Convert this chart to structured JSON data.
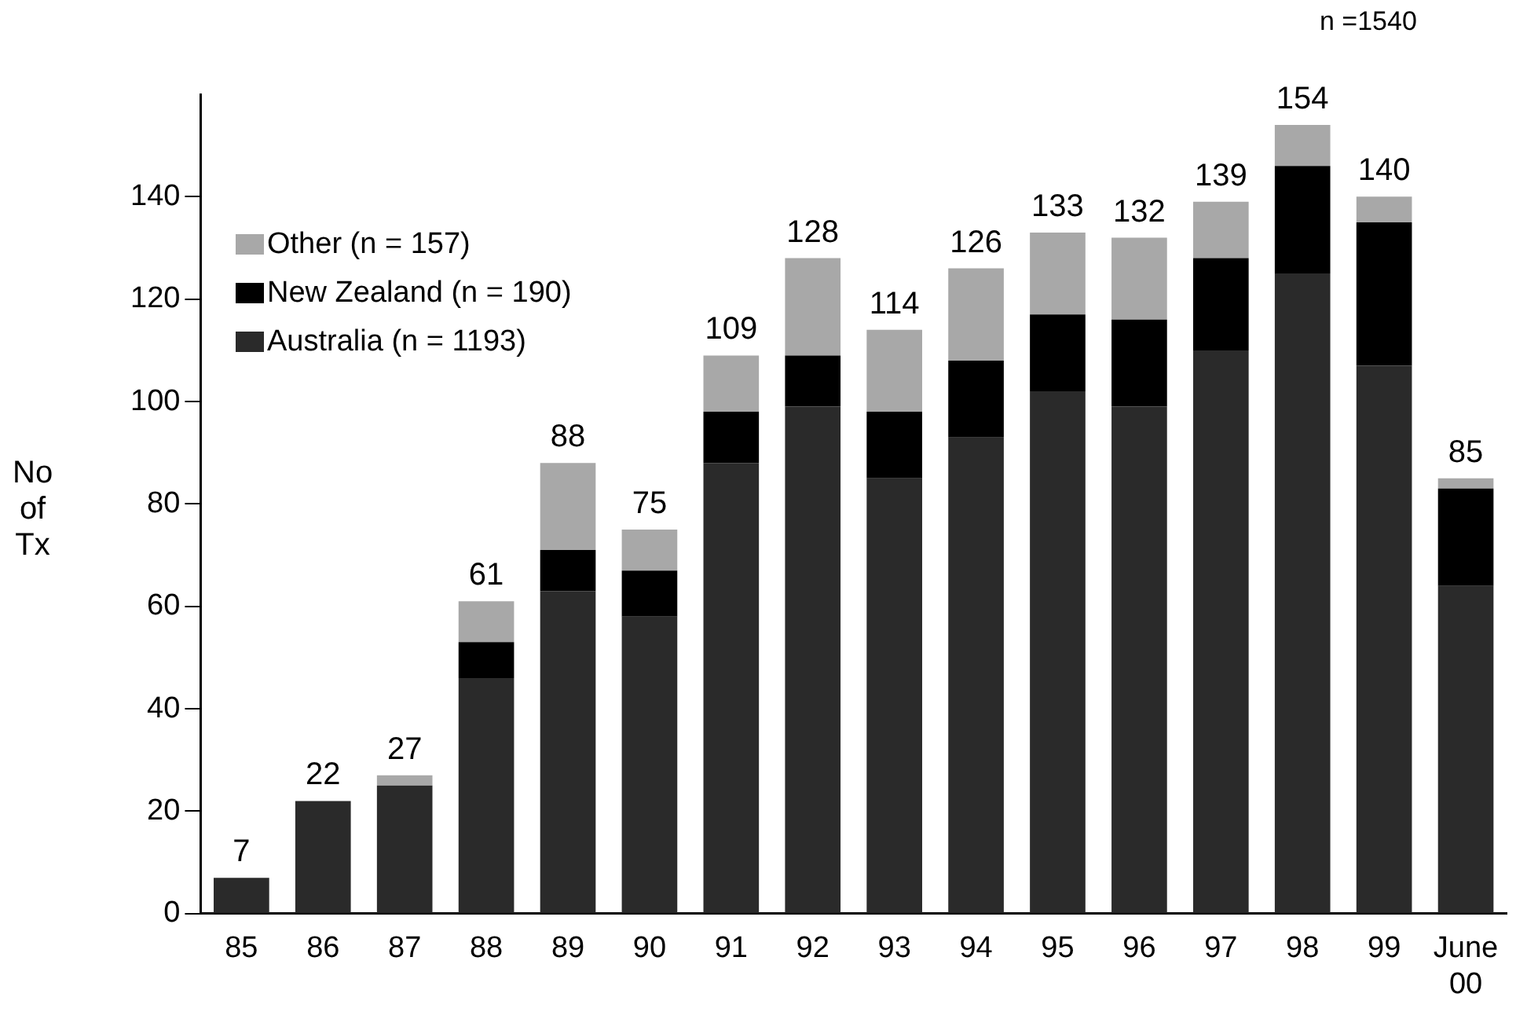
{
  "chart_data": {
    "type": "bar",
    "stacked": true,
    "ylabel": "No\nof\nTx",
    "categories": [
      "85",
      "86",
      "87",
      "88",
      "89",
      "90",
      "91",
      "92",
      "93",
      "94",
      "95",
      "96",
      "97",
      "98",
      "99",
      "June\n00"
    ],
    "series": [
      {
        "name": "Australia (n = 1193)",
        "color": "#2a2a2a",
        "values": [
          7,
          22,
          25,
          46,
          63,
          58,
          88,
          99,
          85,
          93,
          102,
          99,
          110,
          125,
          107,
          64
        ]
      },
      {
        "name": "New Zealand (n = 190)",
        "color": "#000000",
        "values": [
          0,
          0,
          0,
          7,
          8,
          9,
          10,
          10,
          13,
          15,
          15,
          17,
          18,
          21,
          28,
          19
        ]
      },
      {
        "name": "Other (n = 157)",
        "color": "#a8a8a8",
        "values": [
          0,
          0,
          2,
          8,
          17,
          8,
          11,
          19,
          16,
          18,
          16,
          16,
          11,
          8,
          5,
          2
        ]
      }
    ],
    "totals": [
      "7",
      "22",
      "27",
      "61",
      "88",
      "75",
      "109",
      "128",
      "114",
      "126",
      "133",
      "132",
      "139",
      "154",
      "140",
      "85"
    ],
    "annotations": [
      "n =1540"
    ],
    "ylim": [
      0,
      160
    ],
    "yticks": [
      0,
      20,
      40,
      60,
      80,
      100,
      120,
      140
    ],
    "grid": false,
    "legend": "top left"
  }
}
